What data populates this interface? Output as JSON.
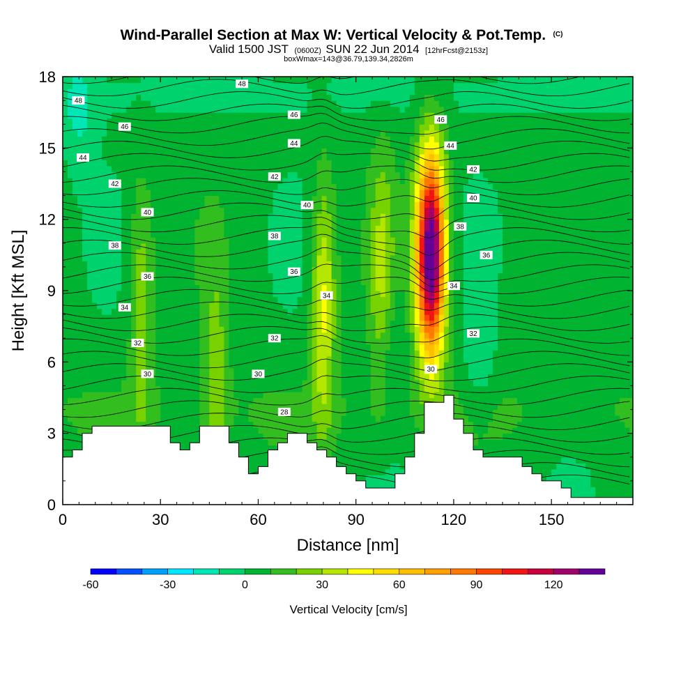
{
  "chart_data": {
    "type": "heatmap",
    "title_main": "Wind-Parallel Section at Max W: Vertical Velocity & Pot.Temp.",
    "title_mark": "(C)",
    "subtitle": {
      "p1": "Valid 1500 JST",
      "p2": "(0600Z)",
      "p3": "SUN 22 Jun 2014",
      "p4": "[12hrFcst@2153z]"
    },
    "subtitle2": "boxWmax=143@36.79,139.34,2826m",
    "xlabel": "Distance [nm]",
    "ylabel": "Height [Kft MSL]",
    "xlim": [
      0,
      175
    ],
    "ylim": [
      0,
      18
    ],
    "xticks": [
      "0",
      "30",
      "60",
      "90",
      "120",
      "150"
    ],
    "yticks": [
      "0",
      "3",
      "6",
      "9",
      "12",
      "15",
      "18"
    ],
    "colorbar": {
      "label": "Vertical Velocity [cm/s]",
      "tick_labels": [
        "-60",
        "-30",
        "0",
        "30",
        "60",
        "90",
        "120"
      ],
      "tick_values": [
        -60,
        -30,
        0,
        30,
        60,
        90,
        120
      ],
      "levels": [
        -60,
        -50,
        -40,
        -30,
        -20,
        -10,
        0,
        10,
        20,
        30,
        40,
        50,
        60,
        70,
        80,
        90,
        100,
        110,
        120,
        130,
        140
      ],
      "colors": [
        "#0000ff",
        "#0050ff",
        "#00a0ff",
        "#00e6ff",
        "#00e6b4",
        "#00d26e",
        "#00b432",
        "#32be1e",
        "#78d200",
        "#b4e600",
        "#ffff00",
        "#ffdc00",
        "#ffbe00",
        "#ffa000",
        "#ff7800",
        "#ff4600",
        "#f01414",
        "#c8003c",
        "#a0006e",
        "#640096"
      ]
    },
    "theta_contour_labels": [
      "48",
      "46",
      "44",
      "42",
      "40",
      "38",
      "36",
      "34",
      "32",
      "30",
      "28"
    ],
    "w_columns": [
      {
        "x": 80,
        "y_center": 8.5,
        "peak": 40
      },
      {
        "x": 113,
        "y_center": 10.5,
        "peak": 143
      },
      {
        "x": 24,
        "y_center": 8.5,
        "peak": 25
      },
      {
        "x": 98,
        "y_center": 9.5,
        "peak": 28
      },
      {
        "x": 47,
        "y_center": 5.0,
        "peak": 22
      }
    ],
    "terrain": [
      [
        0,
        2.0
      ],
      [
        3,
        2.0
      ],
      [
        3,
        2.3
      ],
      [
        6,
        2.3
      ],
      [
        6,
        3.0
      ],
      [
        9,
        3.0
      ],
      [
        9,
        3.3
      ],
      [
        33,
        3.3
      ],
      [
        33,
        2.6
      ],
      [
        36,
        2.6
      ],
      [
        36,
        2.3
      ],
      [
        39,
        2.3
      ],
      [
        39,
        2.6
      ],
      [
        42,
        2.6
      ],
      [
        42,
        3.3
      ],
      [
        51,
        3.3
      ],
      [
        51,
        2.6
      ],
      [
        54,
        2.6
      ],
      [
        54,
        2.0
      ],
      [
        57,
        2.0
      ],
      [
        57,
        1.3
      ],
      [
        60,
        1.3
      ],
      [
        60,
        1.6
      ],
      [
        63,
        1.6
      ],
      [
        63,
        2.3
      ],
      [
        66,
        2.3
      ],
      [
        66,
        2.6
      ],
      [
        69,
        2.6
      ],
      [
        69,
        3.0
      ],
      [
        75,
        3.0
      ],
      [
        75,
        2.6
      ],
      [
        78,
        2.6
      ],
      [
        78,
        2.3
      ],
      [
        81,
        2.3
      ],
      [
        81,
        2.0
      ],
      [
        84,
        2.0
      ],
      [
        84,
        1.6
      ],
      [
        87,
        1.6
      ],
      [
        87,
        1.3
      ],
      [
        90,
        1.3
      ],
      [
        90,
        1.0
      ],
      [
        93,
        1.0
      ],
      [
        93,
        0.7
      ],
      [
        102,
        0.7
      ],
      [
        102,
        1.3
      ],
      [
        105,
        1.3
      ],
      [
        105,
        2.0
      ],
      [
        108,
        2.0
      ],
      [
        108,
        3.0
      ],
      [
        111,
        3.0
      ],
      [
        111,
        4.3
      ],
      [
        117,
        4.3
      ],
      [
        117,
        4.6
      ],
      [
        120,
        4.6
      ],
      [
        120,
        3.6
      ],
      [
        123,
        3.6
      ],
      [
        123,
        3.0
      ],
      [
        126,
        3.0
      ],
      [
        126,
        2.3
      ],
      [
        129,
        2.3
      ],
      [
        129,
        2.0
      ],
      [
        141,
        2.0
      ],
      [
        141,
        1.6
      ],
      [
        144,
        1.6
      ],
      [
        144,
        1.3
      ],
      [
        147,
        1.3
      ],
      [
        147,
        1.0
      ],
      [
        153,
        1.0
      ],
      [
        153,
        0.7
      ],
      [
        156,
        0.7
      ],
      [
        156,
        0.3
      ],
      [
        175,
        0.3
      ]
    ]
  }
}
